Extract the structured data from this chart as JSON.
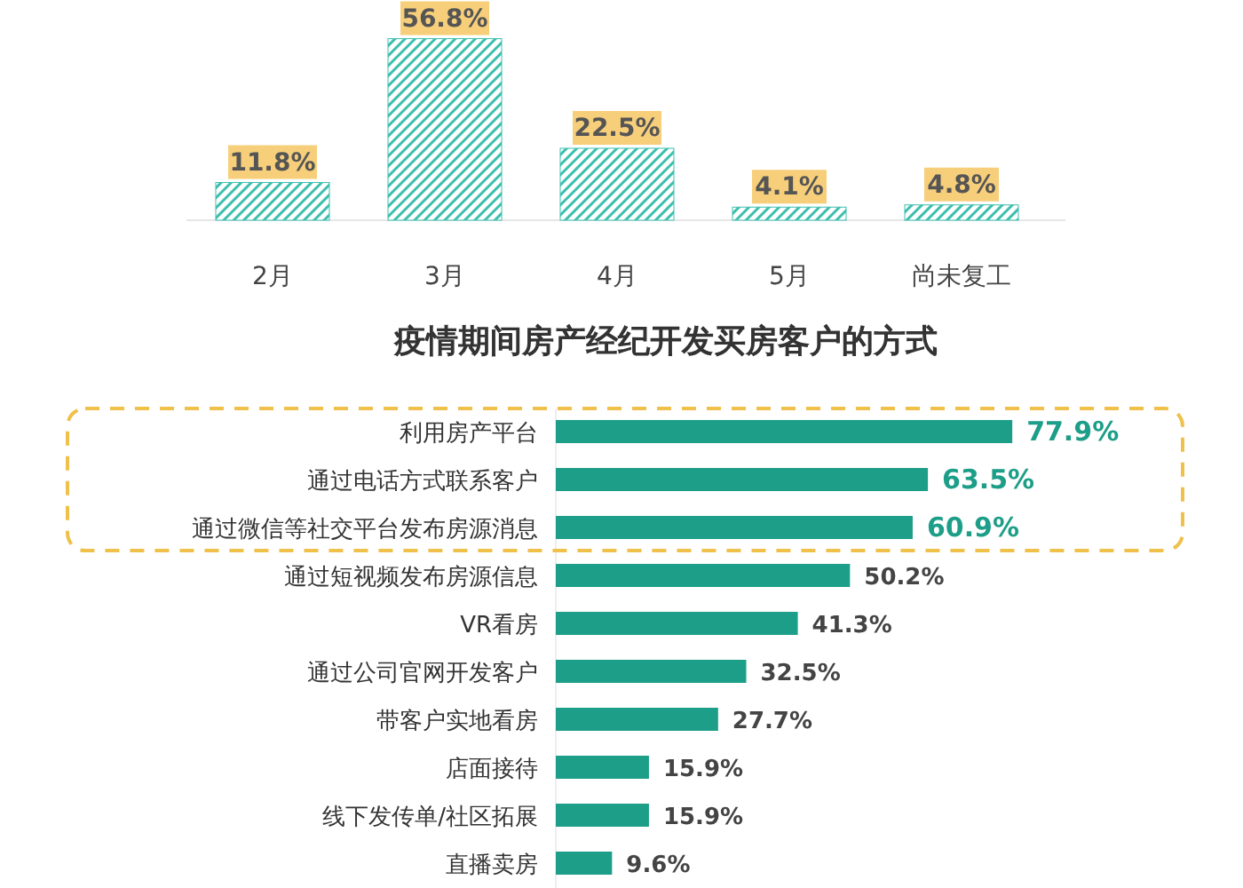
{
  "chart_data": [
    {
      "type": "bar",
      "categories": [
        "2月",
        "3月",
        "4月",
        "5月",
        "尚未复工"
      ],
      "values": [
        11.8,
        56.8,
        22.5,
        4.1,
        4.8
      ],
      "color": "#3dbfae",
      "value_labels": [
        "11.8%",
        "56.8%",
        "22.5%",
        "4.1%",
        "4.8%"
      ]
    },
    {
      "type": "bar",
      "orientation": "horizontal",
      "title": "疫情期间房产经纪开发买房客户的方式",
      "categories": [
        "利用房产平台",
        "通过电话方式联系客户",
        "通过微信等社交平台发布房源消息",
        "通过短视频发布房源信息",
        "VR看房",
        "通过公司官网开发客户",
        "带客户实地看房",
        "店面接待",
        "线下发传单/社区拓展",
        "直播卖房"
      ],
      "values": [
        77.9,
        63.5,
        60.9,
        50.2,
        41.3,
        32.5,
        27.7,
        15.9,
        15.9,
        9.6
      ],
      "color": "#1d9e88",
      "value_labels": [
        "77.9%",
        "63.5%",
        "60.9%",
        "50.2%",
        "41.3%",
        "32.5%",
        "27.7%",
        "15.9%",
        "15.9%",
        "9.6%"
      ]
    }
  ]
}
